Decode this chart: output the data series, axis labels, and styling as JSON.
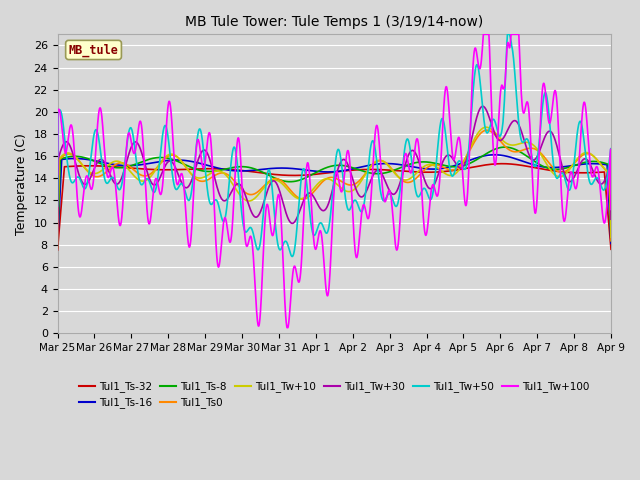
{
  "title": "MB Tule Tower: Tule Temps 1 (3/19/14-now)",
  "ylabel": "Temperature (C)",
  "ylim": [
    0,
    27
  ],
  "yticks": [
    0,
    2,
    4,
    6,
    8,
    10,
    12,
    14,
    16,
    18,
    20,
    22,
    24,
    26
  ],
  "xtick_labels": [
    "Mar 25",
    "Mar 26",
    "Mar 27",
    "Mar 28",
    "Mar 29",
    "Mar 30",
    "Mar 31",
    "Apr 1",
    "Apr 2",
    "Apr 3",
    "Apr 4",
    "Apr 5",
    "Apr 6",
    "Apr 7",
    "Apr 8",
    "Apr 9"
  ],
  "bg_color": "#d8d8d8",
  "plot_bg_color": "#d8d8d8",
  "grid_color": "#ffffff",
  "series": [
    {
      "label": "Tul1_Ts-32",
      "color": "#cc0000",
      "lw": 1.2
    },
    {
      "label": "Tul1_Ts-16",
      "color": "#0000cc",
      "lw": 1.2
    },
    {
      "label": "Tul1_Ts-8",
      "color": "#00aa00",
      "lw": 1.2
    },
    {
      "label": "Tul1_Ts0",
      "color": "#ff8800",
      "lw": 1.2
    },
    {
      "label": "Tul1_Tw+10",
      "color": "#cccc00",
      "lw": 1.2
    },
    {
      "label": "Tul1_Tw+30",
      "color": "#aa00aa",
      "lw": 1.2
    },
    {
      "label": "Tul1_Tw+50",
      "color": "#00cccc",
      "lw": 1.2
    },
    {
      "label": "Tul1_Tw+100",
      "color": "#ff00ff",
      "lw": 1.2
    }
  ],
  "mb_tule_box": {
    "text": "MB_tule",
    "bg": "#ffffcc",
    "border": "#999955",
    "text_color": "#880000"
  }
}
